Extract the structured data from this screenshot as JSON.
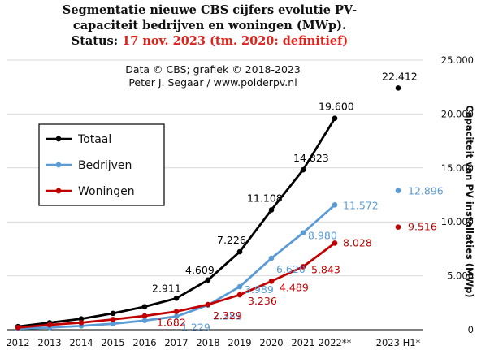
{
  "title": {
    "line1": "Segmentatie nieuwe CBS cijfers evolutie PV-",
    "line2": "capaciteit bedrijven en woningen (MWp).",
    "status_prefix": "Status: ",
    "status_red": "17 nov. 2023 (tm. 2020: definitief)"
  },
  "credit": {
    "line1": "Data © CBS; grafiek © 2018-2023",
    "line2": "Peter J. Segaar / www.polderpv.nl"
  },
  "colors": {
    "totaal": "#000000",
    "bedrijven": "#5b9bd5",
    "woningen": "#c00000",
    "grid": "#d9d9d9"
  },
  "chart_data": {
    "type": "line",
    "title": "Segmentatie nieuwe CBS cijfers evolutie PV-capaciteit bedrijven en woningen (MWp). Status: 17 nov. 2023 (tm. 2020: definitief)",
    "xlabel": "",
    "ylabel": "Capaciteit van PV installaties (MWp)",
    "ylim": [
      0,
      25000
    ],
    "y_ticks": [
      "0",
      "5.000",
      "10.000",
      "15.000",
      "20.000",
      "25.000"
    ],
    "categories": [
      "2012",
      "2013",
      "2014",
      "2015",
      "2016",
      "2017",
      "2018",
      "2019",
      "2020",
      "2021",
      "2022**",
      "2023 H1*"
    ],
    "grid": true,
    "legend": "left",
    "series": [
      {
        "name": "Totaal",
        "color": "#000000",
        "values": [
          287,
          650,
          1007,
          1515,
          2135,
          2911,
          4609,
          7226,
          11108,
          14823,
          19600,
          22412
        ],
        "labels": [
          "",
          "",
          "",
          "",
          "",
          "2.911",
          "4.609",
          "7.226",
          "11.108",
          "14.823",
          "19.600",
          "22.412"
        ]
      },
      {
        "name": "Bedrijven",
        "color": "#5b9bd5",
        "values": [
          100,
          200,
          350,
          550,
          850,
          1229,
          2281,
          3989,
          6620,
          8980,
          11572,
          12896
        ],
        "labels": [
          "",
          "",
          "",
          "",
          "",
          "1.229",
          "2.281",
          "3.989",
          "6.620",
          "8.980",
          "11.572",
          "12.896"
        ]
      },
      {
        "name": "Woningen",
        "color": "#c00000",
        "values": [
          200,
          450,
          650,
          950,
          1280,
          1682,
          2329,
          3236,
          4489,
          5843,
          8028,
          9516
        ],
        "labels": [
          "",
          "",
          "",
          "",
          "",
          "1.682",
          "2.329",
          "3.236",
          "4.489",
          "5.843",
          "8.028",
          "9.516"
        ]
      }
    ]
  }
}
